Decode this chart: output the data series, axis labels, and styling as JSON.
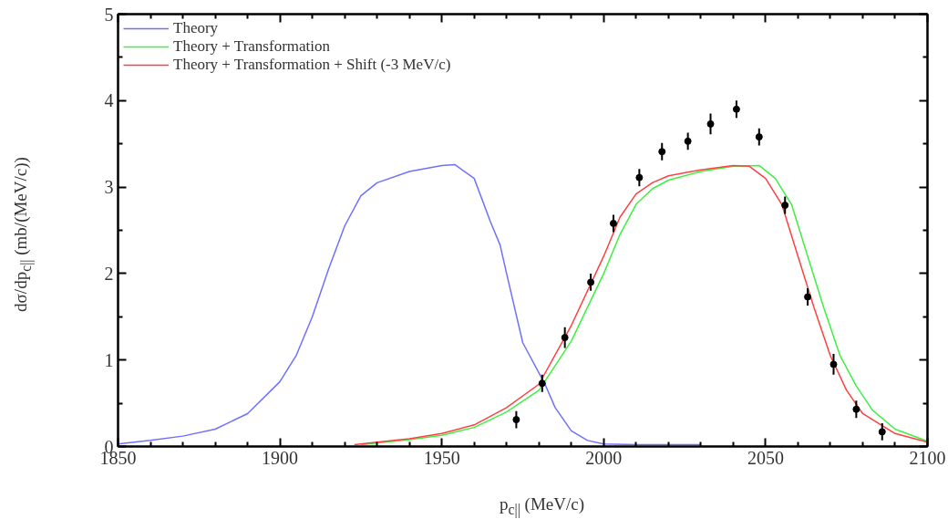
{
  "chart_data": {
    "type": "line",
    "xlabel": "p$_{c||}$ (MeV/c)",
    "ylabel": "dσ/dp$_{c||}$ (mb/(MeV/c))",
    "xlim": [
      1850,
      2100
    ],
    "ylim": [
      0,
      5
    ],
    "xticks": [
      1850,
      {
        "value": 1860,
        "label": null
      },
      {
        "value": 1870,
        "label": null
      },
      {
        "value": 1880,
        "label": null
      },
      {
        "value": 1890,
        "label": null
      },
      1900,
      {
        "value": 1910,
        "label": null
      },
      {
        "value": 1920,
        "label": null
      },
      {
        "value": 1930,
        "label": null
      },
      {
        "value": 1940,
        "label": null
      },
      1950,
      {
        "value": 1960,
        "label": null
      },
      {
        "value": 1970,
        "label": null
      },
      {
        "value": 1980,
        "label": null
      },
      {
        "value": 1990,
        "label": null
      },
      2000,
      {
        "value": 2010,
        "label": null
      },
      {
        "value": 2020,
        "label": null
      },
      {
        "value": 2030,
        "label": null
      },
      {
        "value": 2040,
        "label": null
      },
      2050,
      {
        "value": 2060,
        "label": null
      },
      {
        "value": 2070,
        "label": null
      },
      {
        "value": 2080,
        "label": null
      },
      {
        "value": 2090,
        "label": null
      },
      2100
    ],
    "yticks": [
      0,
      {
        "value": 0.5,
        "label": null
      },
      1,
      {
        "value": 1.5,
        "label": null
      },
      2,
      {
        "value": 2.5,
        "label": null
      },
      3,
      {
        "value": 3.5,
        "label": null
      },
      4,
      {
        "value": 4.5,
        "label": null
      },
      5
    ],
    "grid": false,
    "legend": "top left",
    "line_style": "solid",
    "series": [
      {
        "name": "Theory",
        "color": "#7070ff",
        "x": [
          1850,
          1860,
          1870,
          1880,
          1890,
          1900,
          1905,
          1910,
          1915,
          1920,
          1925,
          1930,
          1940,
          1950,
          1954,
          1960,
          1965,
          1968,
          1970,
          1975,
          1982,
          1985,
          1990,
          1995,
          2000,
          2010,
          2030
        ],
        "values": [
          0.03,
          0.07,
          0.12,
          0.2,
          0.38,
          0.75,
          1.05,
          1.5,
          2.05,
          2.55,
          2.9,
          3.05,
          3.18,
          3.25,
          3.26,
          3.1,
          2.6,
          2.33,
          2.0,
          1.2,
          0.71,
          0.45,
          0.18,
          0.07,
          0.03,
          0.02,
          0.02
        ]
      },
      {
        "name": "Theory + Transformation",
        "color": "#40f040",
        "x": [
          1925,
          1940,
          1950,
          1960,
          1970,
          1980,
          1990,
          2000,
          2005,
          2010,
          2015,
          2020,
          2030,
          2040,
          2048,
          2053,
          2058,
          2063,
          2068,
          2073,
          2078,
          2083,
          2090,
          2100
        ],
        "values": [
          0.02,
          0.08,
          0.13,
          0.22,
          0.4,
          0.65,
          1.22,
          2.0,
          2.45,
          2.8,
          2.98,
          3.08,
          3.18,
          3.24,
          3.25,
          3.1,
          2.8,
          2.2,
          1.6,
          1.05,
          0.7,
          0.42,
          0.2,
          0.06
        ]
      },
      {
        "name": "Theory + Transformation + Shift (-3 MeV/c)",
        "color": "#ff4040",
        "x": [
          1923,
          1930,
          1940,
          1950,
          1960,
          1970,
          1980,
          1990,
          2000,
          2005,
          2010,
          2015,
          2020,
          2030,
          2040,
          2045,
          2050,
          2055,
          2060,
          2065,
          2070,
          2075,
          2080,
          2090,
          2100
        ],
        "values": [
          0.02,
          0.05,
          0.09,
          0.15,
          0.25,
          0.45,
          0.72,
          1.4,
          2.2,
          2.65,
          2.92,
          3.05,
          3.13,
          3.2,
          3.25,
          3.24,
          3.1,
          2.8,
          2.2,
          1.6,
          1.05,
          0.65,
          0.38,
          0.15,
          0.05
        ]
      },
      {
        "type": "scatter",
        "marker": "circle",
        "color": "#000000",
        "x": [
          1973,
          1981,
          1988,
          1996,
          2003,
          2011,
          2018,
          2026,
          2033,
          2041,
          2048,
          2056,
          2063,
          2071,
          2078,
          2086
        ],
        "values": [
          0.31,
          0.73,
          1.26,
          1.9,
          2.58,
          3.11,
          3.41,
          3.53,
          3.73,
          3.9,
          3.58,
          2.79,
          1.73,
          0.95,
          0.43,
          0.17
        ],
        "errors": [
          0.1,
          0.1,
          0.12,
          0.1,
          0.1,
          0.1,
          0.1,
          0.1,
          0.12,
          0.1,
          0.1,
          0.1,
          0.1,
          0.12,
          0.1,
          0.1
        ]
      }
    ]
  }
}
